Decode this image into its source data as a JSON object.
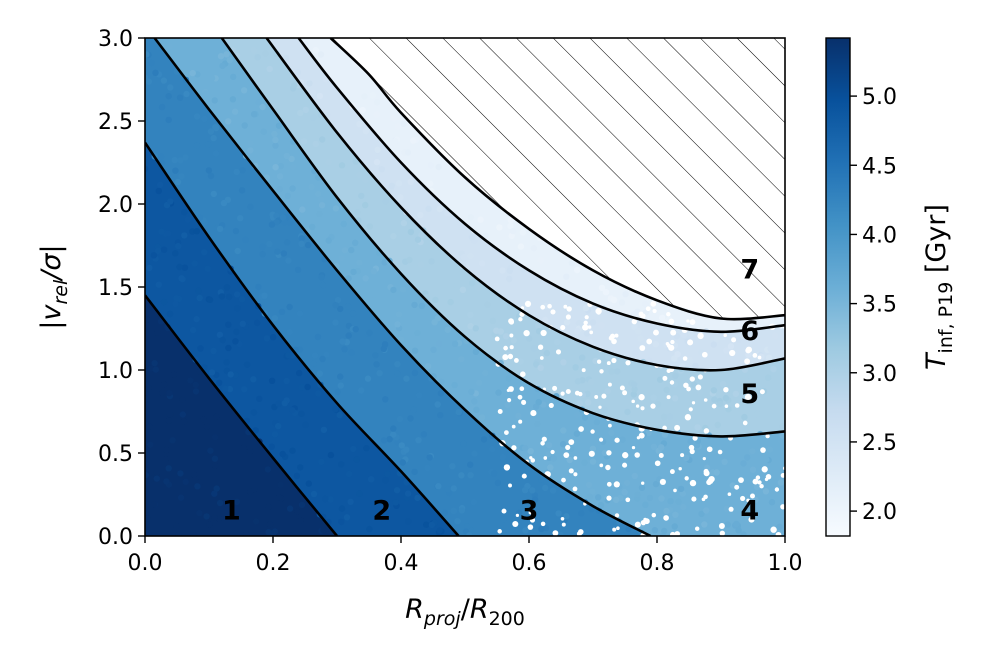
{
  "chart_data": {
    "type": "heatmap",
    "x": {
      "label_var": "R",
      "label_var_sub": "proj",
      "label_sep": "/",
      "label_den": "R",
      "label_den_sub": "200",
      "lim": [
        0.0,
        1.0
      ],
      "ticks": [
        0.0,
        0.2,
        0.4,
        0.6,
        0.8,
        1.0
      ],
      "tick_labels": [
        "0.0",
        "0.2",
        "0.4",
        "0.6",
        "0.8",
        "1.0"
      ]
    },
    "y": {
      "label_left": "|",
      "label_var": "v",
      "label_var_sub": "rel",
      "label_mid": "/σ",
      "label_right": "|",
      "lim": [
        0.0,
        3.0
      ],
      "ticks": [
        0.0,
        0.5,
        1.0,
        1.5,
        2.0,
        2.5,
        3.0
      ],
      "tick_labels": [
        "0.0",
        "0.5",
        "1.0",
        "1.5",
        "2.0",
        "2.5",
        "3.0"
      ]
    },
    "colorbar": {
      "label_var": "T",
      "label_sub": "inf, P19",
      "label_unit": " [Gyr]",
      "range": [
        1.82,
        5.42
      ],
      "ticks": [
        2.0,
        2.5,
        3.0,
        3.5,
        4.0,
        4.5,
        5.0
      ],
      "tick_labels": [
        "2.0",
        "2.5",
        "3.0",
        "3.5",
        "4.0",
        "4.5",
        "5.0"
      ],
      "colormap": "Blues",
      "color_low": "#f7fbff",
      "color_high": "#08306b"
    },
    "regions": [
      {
        "label": "1",
        "value": 5.42,
        "label_pos": [
          0.135,
          0.1
        ]
      },
      {
        "label": "2",
        "value": 4.88,
        "label_pos": [
          0.37,
          0.1
        ]
      },
      {
        "label": "3",
        "value": 4.27,
        "label_pos": [
          0.6,
          0.1
        ]
      },
      {
        "label": "4",
        "value": 3.59,
        "label_pos": [
          0.945,
          0.1
        ]
      },
      {
        "label": "5",
        "value": 3.05,
        "label_pos": [
          0.945,
          0.8
        ]
      },
      {
        "label": "6",
        "value": 2.55,
        "label_pos": [
          0.945,
          1.18
        ]
      },
      {
        "label": "7",
        "value": 2.1,
        "label_pos": [
          0.945,
          1.55
        ]
      }
    ],
    "boundaries": [
      {
        "name": "1-2",
        "points": [
          [
            0.0,
            1.45
          ],
          [
            0.1,
            0.95
          ],
          [
            0.2,
            0.47
          ],
          [
            0.3,
            0.0
          ]
        ]
      },
      {
        "name": "2-3",
        "points": [
          [
            0.0,
            2.37
          ],
          [
            0.1,
            1.8
          ],
          [
            0.2,
            1.27
          ],
          [
            0.3,
            0.8
          ],
          [
            0.4,
            0.39
          ],
          [
            0.49,
            0.0
          ]
        ]
      },
      {
        "name": "3-4",
        "points": [
          [
            0.015,
            3.0
          ],
          [
            0.1,
            2.57
          ],
          [
            0.2,
            2.08
          ],
          [
            0.3,
            1.6
          ],
          [
            0.4,
            1.15
          ],
          [
            0.5,
            0.76
          ],
          [
            0.6,
            0.43
          ],
          [
            0.7,
            0.18
          ],
          [
            0.79,
            0.0
          ]
        ]
      },
      {
        "name": "4-5",
        "points": [
          [
            0.12,
            3.0
          ],
          [
            0.2,
            2.57
          ],
          [
            0.3,
            2.04
          ],
          [
            0.4,
            1.58
          ],
          [
            0.5,
            1.2
          ],
          [
            0.6,
            0.92
          ],
          [
            0.7,
            0.74
          ],
          [
            0.8,
            0.64
          ],
          [
            0.9,
            0.6
          ],
          [
            1.0,
            0.63
          ]
        ]
      },
      {
        "name": "5-6",
        "points": [
          [
            0.19,
            3.0
          ],
          [
            0.3,
            2.43
          ],
          [
            0.4,
            1.98
          ],
          [
            0.5,
            1.61
          ],
          [
            0.6,
            1.33
          ],
          [
            0.7,
            1.14
          ],
          [
            0.8,
            1.03
          ],
          [
            0.9,
            1.0
          ],
          [
            1.0,
            1.07
          ]
        ]
      },
      {
        "name": "6-7",
        "points": [
          [
            0.24,
            3.0
          ],
          [
            0.3,
            2.7
          ],
          [
            0.4,
            2.25
          ],
          [
            0.5,
            1.88
          ],
          [
            0.6,
            1.6
          ],
          [
            0.7,
            1.4
          ],
          [
            0.8,
            1.28
          ],
          [
            0.9,
            1.23
          ],
          [
            1.0,
            1.27
          ]
        ]
      },
      {
        "name": "7-edge",
        "points": [
          [
            0.29,
            3.0
          ],
          [
            0.35,
            2.78
          ],
          [
            0.4,
            2.55
          ],
          [
            0.5,
            2.16
          ],
          [
            0.6,
            1.85
          ],
          [
            0.7,
            1.6
          ],
          [
            0.8,
            1.42
          ],
          [
            0.9,
            1.31
          ],
          [
            1.0,
            1.33
          ]
        ]
      }
    ],
    "hatched_region": "above 7-edge boundary"
  }
}
